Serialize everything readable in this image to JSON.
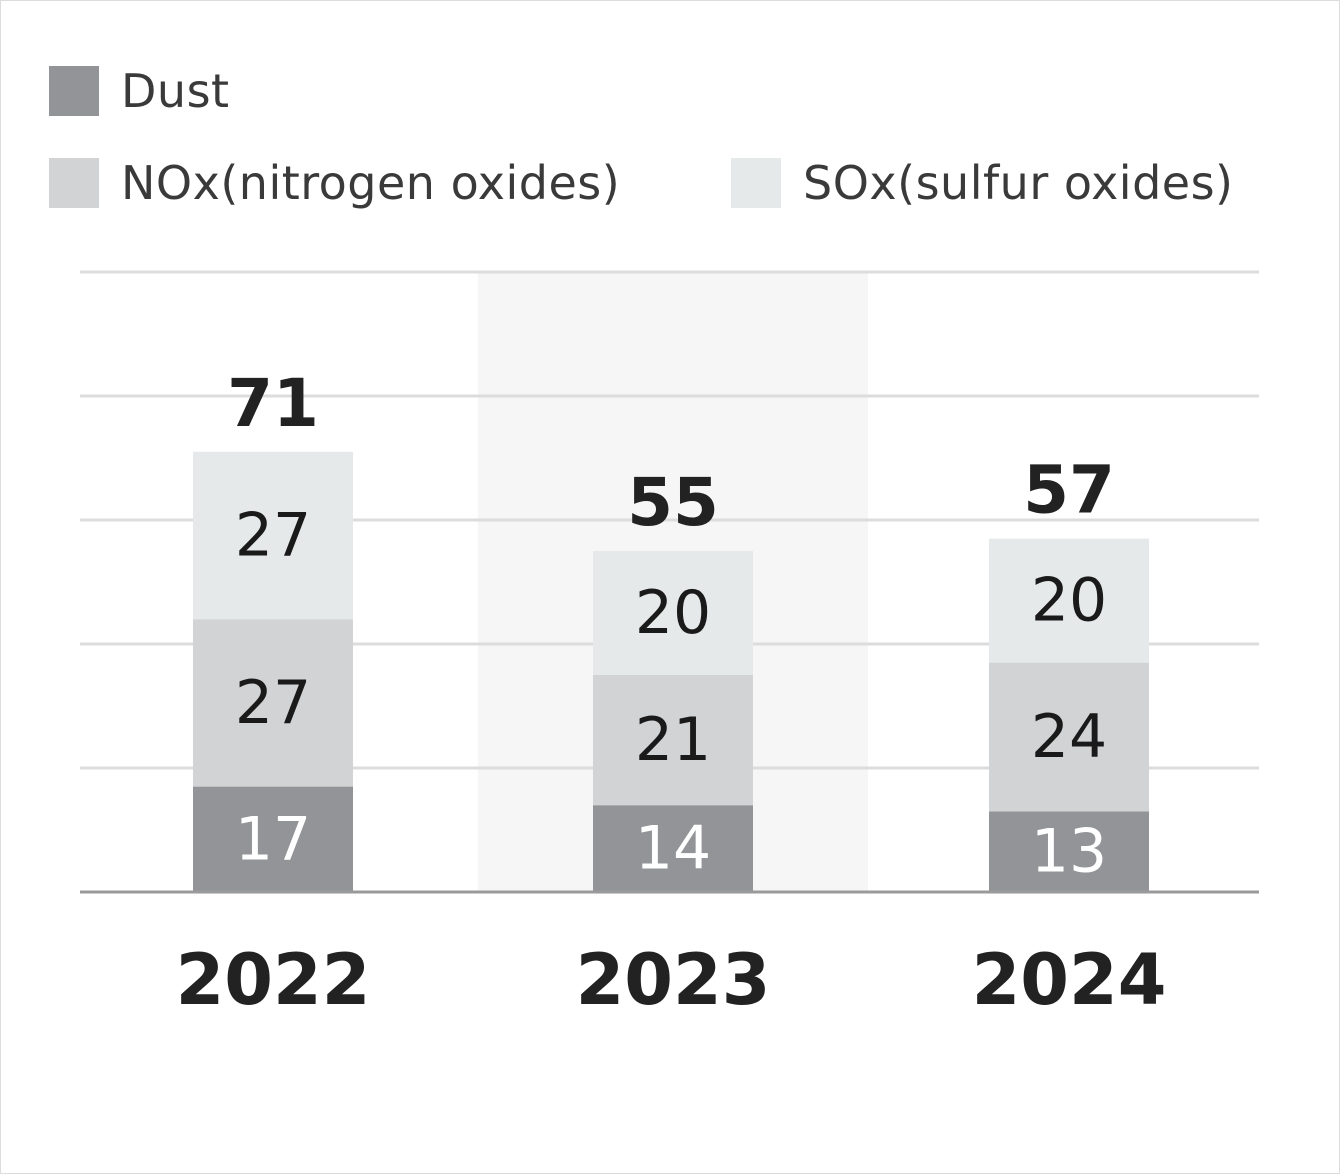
{
  "chart_data": {
    "type": "bar",
    "stacked": true,
    "categories": [
      "2022",
      "2023",
      "2024"
    ],
    "series": [
      {
        "name": "Dust",
        "values": [
          17,
          14,
          13
        ],
        "color": "#939497",
        "label_color": "#ffffff"
      },
      {
        "name": "NOx(nitrogen oxides)",
        "values": [
          27,
          21,
          24
        ],
        "color": "#d2d3d5",
        "label_color": "#1a1a1a"
      },
      {
        "name": "SOx(sulfur oxides)",
        "values": [
          27,
          20,
          20
        ],
        "color": "#e6e9ea",
        "label_color": "#1a1a1a"
      }
    ],
    "totals": [
      "71",
      "55",
      "57"
    ],
    "highlight_category": "2023",
    "highlight_color": "#f6f6f6",
    "grid": true,
    "legend": "top-left",
    "ylim": [
      0,
      100
    ]
  }
}
